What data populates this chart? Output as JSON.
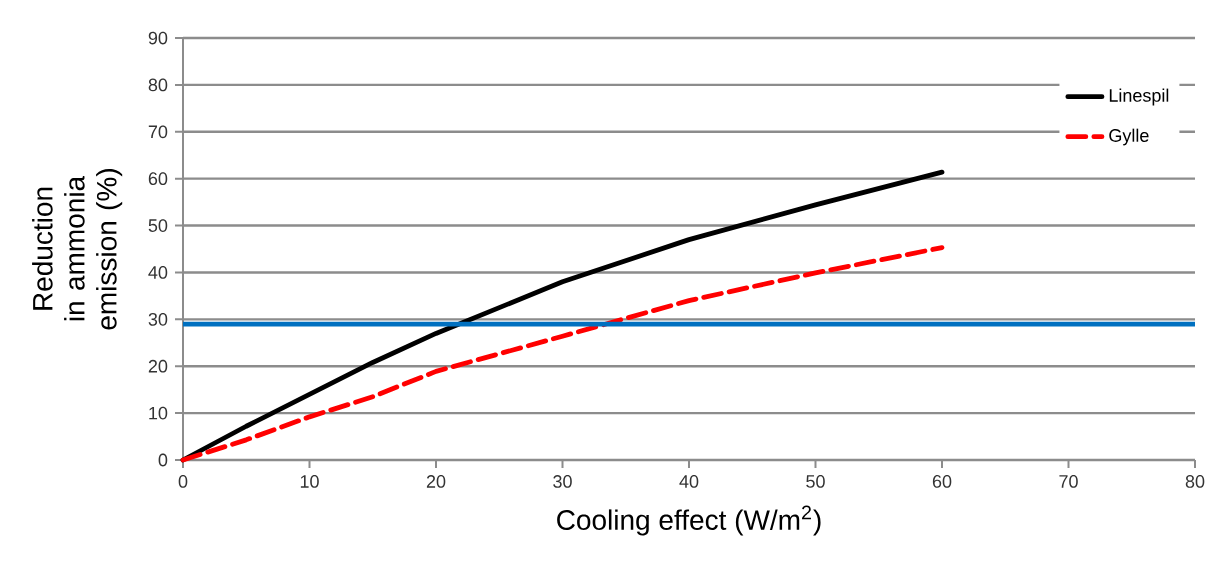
{
  "chart_data": {
    "type": "line",
    "xlabel": "Cooling effect (W/m$^{2}$)",
    "ylabel": "Reduction in ammonia emission (%)",
    "xlim": [
      0,
      80
    ],
    "xticks": [
      0,
      10,
      20,
      30,
      40,
      50,
      60,
      70,
      80
    ],
    "ylim": [
      0,
      90
    ],
    "yticks": [
      0,
      10,
      20,
      30,
      40,
      50,
      60,
      70,
      80,
      90
    ],
    "grid": "y",
    "legend": "right",
    "marker": "none",
    "series": [
      {
        "name": "Linespil",
        "color": "#000000",
        "line_style": "solid",
        "x": [
          0,
          5,
          10,
          15,
          20,
          30,
          40,
          50,
          60
        ],
        "values": [
          0,
          7.2,
          14,
          20.8,
          27,
          38,
          47,
          54.4,
          61.4
        ]
      },
      {
        "name": "Gylle",
        "color": "#ff0000",
        "line_style": "dashed",
        "x": [
          0,
          5,
          10,
          15,
          20,
          30,
          40,
          50,
          60
        ],
        "values": [
          0,
          4.3,
          9.2,
          13.5,
          18.9,
          26.4,
          34,
          39.9,
          45.3
        ]
      }
    ],
    "ref_lines": [
      {
        "axis": "y",
        "value": 29,
        "color": "#0070c0"
      }
    ]
  }
}
